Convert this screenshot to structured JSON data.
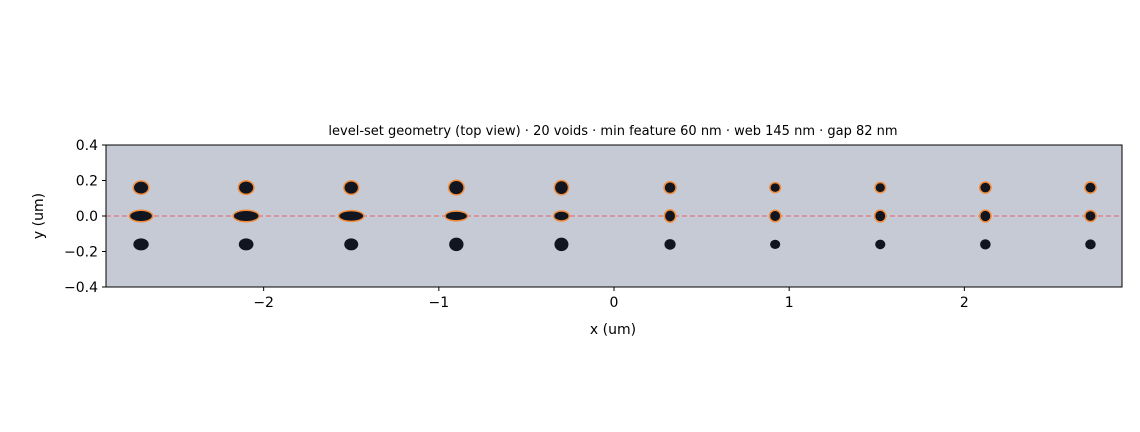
{
  "chart_data": {
    "type": "scatter",
    "title": "level-set geometry (top view) · 20 voids · min feature 60 nm · web 145 nm · gap 82 nm",
    "xlabel": "x (um)",
    "ylabel": "y (um)",
    "xlim": [
      -2.9,
      2.9
    ],
    "ylim": [
      -0.4,
      0.4
    ],
    "xticks": [
      -2,
      -1,
      0,
      1,
      2
    ],
    "xtick_labels": [
      "−2",
      "−1",
      "0",
      "1",
      "2"
    ],
    "yticks": [
      0.4,
      0.2,
      0.0,
      -0.2,
      -0.4
    ],
    "ytick_labels": [
      "0.4",
      "0.2",
      "0.0",
      "−0.2",
      "−0.4"
    ],
    "grid": false,
    "reference_line_y": 0.0,
    "colors": {
      "background": "#c6cad4",
      "void": "#10151f",
      "outline": "#f28c3b",
      "reference_line": "#e8636d"
    },
    "columns_x": [
      -2.7,
      -2.1,
      -1.5,
      -0.9,
      -0.3,
      0.32,
      0.92,
      1.52,
      2.12,
      2.72
    ],
    "rows": [
      {
        "name": "top",
        "y": 0.16,
        "outlined": true,
        "rx": [
          0.04,
          0.04,
          0.038,
          0.04,
          0.036,
          0.03,
          0.026,
          0.026,
          0.028,
          0.028
        ],
        "ry": [
          0.033,
          0.034,
          0.034,
          0.037,
          0.036,
          0.029,
          0.024,
          0.025,
          0.027,
          0.027
        ]
      },
      {
        "name": "center",
        "y": 0.0,
        "outlined": true,
        "rx": [
          0.062,
          0.07,
          0.068,
          0.06,
          0.04,
          0.028,
          0.028,
          0.028,
          0.028,
          0.028
        ],
        "ry": [
          0.028,
          0.028,
          0.026,
          0.023,
          0.024,
          0.03,
          0.028,
          0.029,
          0.029,
          0.027
        ]
      },
      {
        "name": "bottom",
        "y": -0.16,
        "outlined": false,
        "rx": [
          0.044,
          0.042,
          0.04,
          0.041,
          0.04,
          0.032,
          0.029,
          0.029,
          0.03,
          0.03
        ],
        "ry": [
          0.034,
          0.034,
          0.034,
          0.038,
          0.038,
          0.03,
          0.026,
          0.027,
          0.029,
          0.028
        ]
      }
    ]
  }
}
